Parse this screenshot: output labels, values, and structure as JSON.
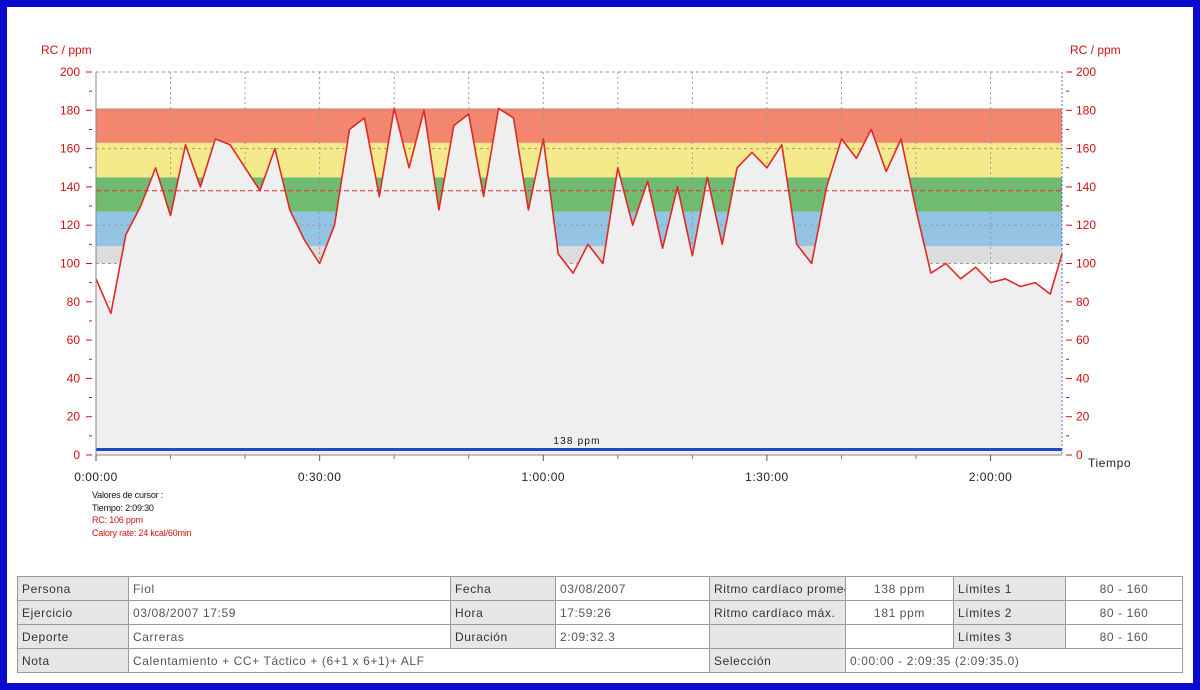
{
  "chart_data": {
    "type": "line",
    "ylabel_left": "RC / ppm",
    "ylabel_right": "RC / ppm",
    "xlabel": "Tiempo",
    "ylim": [
      0,
      200
    ],
    "y_ticks": [
      "0",
      "20",
      "40",
      "60",
      "80",
      "100",
      "120",
      "140",
      "160",
      "180",
      "200"
    ],
    "x_range_seconds": [
      0,
      7775
    ],
    "x_ticks": [
      {
        "t": 0,
        "label": "0:00:00"
      },
      {
        "t": 1800,
        "label": "0:30:00"
      },
      {
        "t": 3600,
        "label": "1:00:00"
      },
      {
        "t": 5400,
        "label": "1:30:00"
      },
      {
        "t": 7200,
        "label": "2:00:00"
      }
    ],
    "zones": [
      {
        "from": 100,
        "to": 109,
        "color": "#dcdcdc"
      },
      {
        "from": 109,
        "to": 127,
        "color": "#93c4e4"
      },
      {
        "from": 127,
        "to": 145,
        "color": "#6fbb6f"
      },
      {
        "from": 145,
        "to": 163,
        "color": "#f5ea8a"
      },
      {
        "from": 163,
        "to": 181,
        "color": "#f2866e"
      }
    ],
    "average": {
      "value": 138,
      "label": "138 ppm"
    },
    "series": [
      {
        "color": "#dd2a24",
        "x": [
          "0:00:00",
          "0:02:00",
          "0:04:00",
          "0:06:00",
          "0:08:00",
          "0:10:00",
          "0:12:00",
          "0:14:00",
          "0:16:00",
          "0:18:00",
          "0:20:00",
          "0:22:00",
          "0:24:00",
          "0:26:00",
          "0:28:00",
          "0:30:00",
          "0:32:00",
          "0:34:00",
          "0:36:00",
          "0:38:00",
          "0:40:00",
          "0:42:00",
          "0:44:00",
          "0:46:00",
          "0:48:00",
          "0:50:00",
          "0:52:00",
          "0:54:00",
          "0:56:00",
          "0:58:00",
          "1:00:00",
          "1:02:00",
          "1:04:00",
          "1:06:00",
          "1:08:00",
          "1:10:00",
          "1:12:00",
          "1:14:00",
          "1:16:00",
          "1:18:00",
          "1:20:00",
          "1:22:00",
          "1:24:00",
          "1:26:00",
          "1:28:00",
          "1:30:00",
          "1:32:00",
          "1:34:00",
          "1:36:00",
          "1:38:00",
          "1:40:00",
          "1:42:00",
          "1:44:00",
          "1:46:00",
          "1:48:00",
          "1:50:00",
          "1:52:00",
          "1:54:00",
          "1:56:00",
          "1:58:00",
          "2:00:00",
          "2:02:00",
          "2:04:00",
          "2:06:00",
          "2:08:00",
          "2:09:35"
        ],
        "y": [
          92,
          74,
          115,
          130,
          150,
          125,
          162,
          140,
          165,
          162,
          150,
          138,
          160,
          128,
          112,
          100,
          120,
          170,
          176,
          135,
          181,
          150,
          180,
          128,
          172,
          178,
          135,
          181,
          176,
          128,
          165,
          105,
          95,
          110,
          100,
          150,
          120,
          143,
          108,
          140,
          104,
          145,
          110,
          150,
          158,
          150,
          162,
          110,
          100,
          140,
          165,
          155,
          170,
          148,
          165,
          128,
          95,
          100,
          92,
          98,
          90,
          92,
          88,
          90,
          84,
          105
        ]
      }
    ]
  },
  "cursor_info": {
    "title": "Valores de cursor :",
    "time": "Tiempo: 2:09:30",
    "hr": "RC: 106 ppm",
    "calorie": "Calory rate: 24 kcal/60min"
  },
  "info_table": {
    "persona_label": "Persona",
    "persona_value": "Fiol",
    "fecha_label": "Fecha",
    "fecha_value": "03/08/2007",
    "avg_label": "Ritmo cardíaco promedio",
    "avg_value": "138 ppm",
    "lim1_label": "Límites 1",
    "lim1_value": "80 - 160",
    "ejercicio_label": "Ejercicio",
    "ejercicio_value": "03/08/2007 17:59",
    "hora_label": "Hora",
    "hora_value": "17:59:26",
    "max_label": "Ritmo cardíaco máx.",
    "max_value": "181 ppm",
    "lim2_label": "Límites 2",
    "lim2_value": "80 - 160",
    "deporte_label": "Deporte",
    "deporte_value": "Carreras",
    "duracion_label": "Duración",
    "duracion_value": "2:09:32.3",
    "lim3_label": "Límites 3",
    "lim3_value": "80 - 160",
    "nota_label": "Nota",
    "nota_value": "Calentamiento + CC+ Táctico + (6+1 x 6+1)+ ALF",
    "seleccion_label": "Selección",
    "seleccion_value": "0:00:00 - 2:09:35 (2:09:35.0)"
  },
  "colors": {
    "frame": "#0a0ad0",
    "axis_red": "#d01010",
    "line": "#dd2a24",
    "avg_bar": "#2447c8"
  }
}
